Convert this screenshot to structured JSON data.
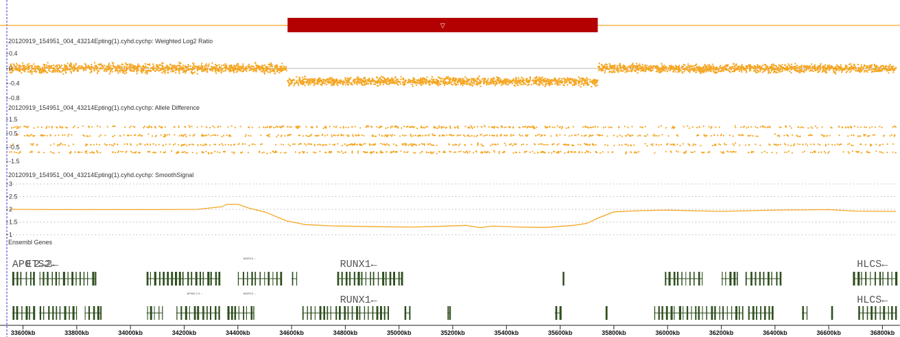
{
  "colors": {
    "accent": "#f5a623",
    "region": "#b30000",
    "gene": "#2f4f1f",
    "ensembl": "#2e7d32",
    "baseline": "#bbbbbb",
    "cursor": "#3333cc"
  },
  "region_marker": {
    "icon": "triangle-down-icon",
    "glyph": "▽"
  },
  "chart_data": {
    "type": "scatter",
    "x_unit": "kb",
    "xlim": [
      33550,
      36850
    ],
    "region_kb": [
      34585,
      35740
    ],
    "x_ticks": [
      33600,
      33800,
      34000,
      34200,
      34400,
      34600,
      34800,
      35000,
      35200,
      35400,
      35600,
      35800,
      36000,
      36200,
      36400,
      36600,
      36800
    ],
    "x_tick_labels": [
      "33600kb",
      "33800kb",
      "34000kb",
      "34200kb",
      "34400kb",
      "34600kb",
      "34800kb",
      "35000kb",
      "35200kb",
      "35400kb",
      "35600kb",
      "35800kb",
      "36000kb",
      "36200kb",
      "36400kb",
      "36600kb",
      "36800kb"
    ],
    "tracks": [
      {
        "title": "20120919_154951_004_43214Epting(1).cyhd.cychp: Weighted Log2 Ratio",
        "type": "scatter",
        "ylim": [
          -0.8,
          0.4
        ],
        "y_ticks": [
          0.4,
          0,
          -0.4,
          -0.8
        ],
        "y_tick_labels": [
          "0.4",
          "0",
          "-0.4",
          "-0.8"
        ],
        "baseline": 0,
        "segments": [
          {
            "x": [
              33550,
              34585
            ],
            "mean": 0.0,
            "spread": 0.11
          },
          {
            "x": [
              34585,
              35740
            ],
            "mean": -0.35,
            "spread": 0.1
          },
          {
            "x": [
              35740,
              36850
            ],
            "mean": 0.0,
            "spread": 0.1
          }
        ]
      },
      {
        "title": "20120919_154951_004_43214Epting(1).cyhd.cychp: Allele Difference",
        "type": "scatter",
        "ylim": [
          -1.5,
          1.5
        ],
        "y_ticks": [
          1.5,
          0.5,
          -0.5,
          -1.5
        ],
        "y_tick_labels": [
          "1.5",
          "0.5",
          "-0.5",
          "-1.5"
        ],
        "bands": [
          0.95,
          0.35,
          -0.3,
          -0.85
        ]
      },
      {
        "title": "20120919_154951_004_43214Epting(1).cyhd.cychp: SmoothSignal",
        "type": "line",
        "ylim": [
          1,
          3
        ],
        "y_ticks": [
          3,
          2.5,
          2,
          1.5,
          1
        ],
        "y_tick_labels": [
          "3",
          "2.5",
          "2",
          "1.5",
          "1"
        ],
        "grid": true,
        "x": [
          33550,
          33700,
          33900,
          34100,
          34250,
          34340,
          34360,
          34400,
          34440,
          34500,
          34580,
          34650,
          34750,
          34900,
          35050,
          35150,
          35250,
          35300,
          35350,
          35450,
          35550,
          35650,
          35700,
          35740,
          35800,
          35900,
          36000,
          36200,
          36400,
          36600,
          36700,
          36850
        ],
        "y": [
          2.0,
          1.99,
          1.99,
          1.99,
          2.0,
          2.1,
          2.2,
          2.2,
          2.05,
          1.9,
          1.55,
          1.4,
          1.35,
          1.32,
          1.3,
          1.33,
          1.37,
          1.28,
          1.34,
          1.3,
          1.29,
          1.37,
          1.45,
          1.65,
          1.9,
          1.95,
          1.97,
          1.92,
          1.97,
          1.99,
          1.93,
          1.92
        ]
      }
    ]
  },
  "genes_track": {
    "title": "Ensembl Genes",
    "rows": [
      {
        "labels": [
          {
            "text": "AP0",
            "x": 33560
          },
          {
            "text": "ETS2←",
            "x": 33610
          },
          {
            "text": "2→2←",
            "x": 33640
          },
          {
            "text": "RUNX1←",
            "x": 34780
          },
          {
            "text": "HLCS←",
            "x": 36705
          }
        ],
        "small_labels": [
          {
            "text": "MORC3 ←",
            "x": 34420
          }
        ],
        "genes": [
          {
            "start": 33560,
            "end": 33640
          },
          {
            "start": 33660,
            "end": 33870
          },
          {
            "start": 34060,
            "end": 34330
          },
          {
            "start": 34400,
            "end": 34560
          },
          {
            "start": 34600,
            "end": 34620
          },
          {
            "start": 34770,
            "end": 35010
          },
          {
            "start": 35610,
            "end": 35612
          },
          {
            "start": 35990,
            "end": 36130
          },
          {
            "start": 36200,
            "end": 36260
          },
          {
            "start": 36290,
            "end": 36420
          },
          {
            "start": 36690,
            "end": 36850
          }
        ]
      },
      {
        "labels": [
          {
            "text": "RUNX1←",
            "x": 34780
          },
          {
            "text": "HLCS←",
            "x": 36705
          }
        ],
        "small_labels": [
          {
            "text": "AP000 2.3 ←",
            "x": 34210
          },
          {
            "text": "MORC3 ←",
            "x": 34420
          }
        ],
        "genes": [
          {
            "start": 33560,
            "end": 33640
          },
          {
            "start": 33660,
            "end": 33800
          },
          {
            "start": 33830,
            "end": 33890
          },
          {
            "start": 34060,
            "end": 34120
          },
          {
            "start": 34170,
            "end": 34330
          },
          {
            "start": 34360,
            "end": 34460
          },
          {
            "start": 34640,
            "end": 34960
          },
          {
            "start": 35020,
            "end": 35040
          },
          {
            "start": 35180,
            "end": 35190
          },
          {
            "start": 35580,
            "end": 35600
          },
          {
            "start": 35770,
            "end": 35772
          },
          {
            "start": 35950,
            "end": 36280
          },
          {
            "start": 36300,
            "end": 36390
          },
          {
            "start": 36500,
            "end": 36520
          },
          {
            "start": 36610,
            "end": 36612
          },
          {
            "start": 36710,
            "end": 36850
          }
        ]
      }
    ]
  }
}
